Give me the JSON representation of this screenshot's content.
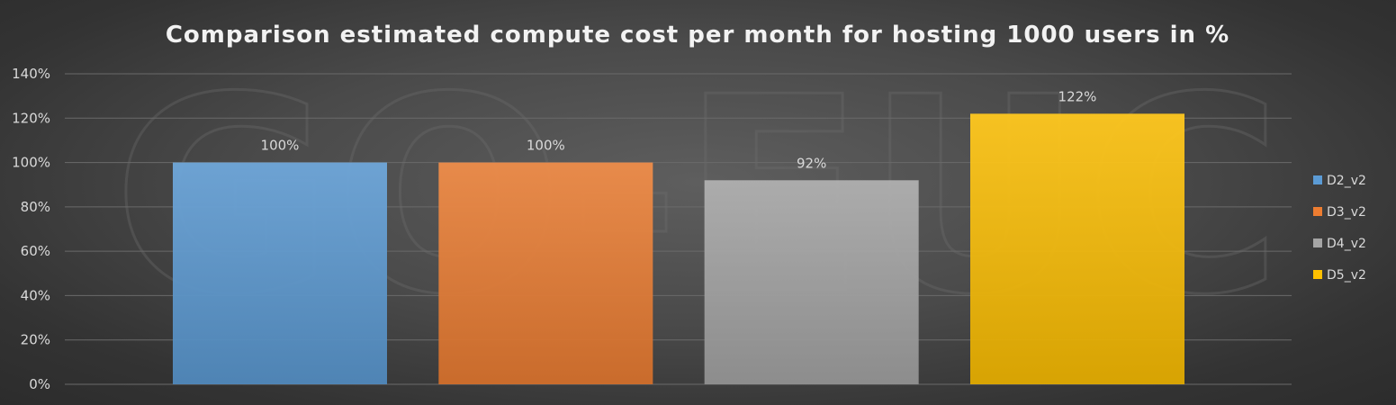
{
  "chart_data": {
    "type": "bar",
    "title": "Comparison estimated compute cost per month for hosting 1000 users in %",
    "xlabel": "",
    "ylabel": "",
    "ylim": [
      0,
      140
    ],
    "ytick_step": 20,
    "ytick_suffix": "%",
    "grid": true,
    "legend_position": "right",
    "watermark": "GO-EUC",
    "series": [
      {
        "name": "D2_v2",
        "value": 100,
        "label": "100%",
        "color": "#5b9bd5"
      },
      {
        "name": "D3_v2",
        "value": 100,
        "label": "100%",
        "color": "#ed7d31"
      },
      {
        "name": "D4_v2",
        "value": 92,
        "label": "92%",
        "color": "#a5a5a5"
      },
      {
        "name": "D5_v2",
        "value": 122,
        "label": "122%",
        "color": "#ffc000"
      }
    ]
  }
}
